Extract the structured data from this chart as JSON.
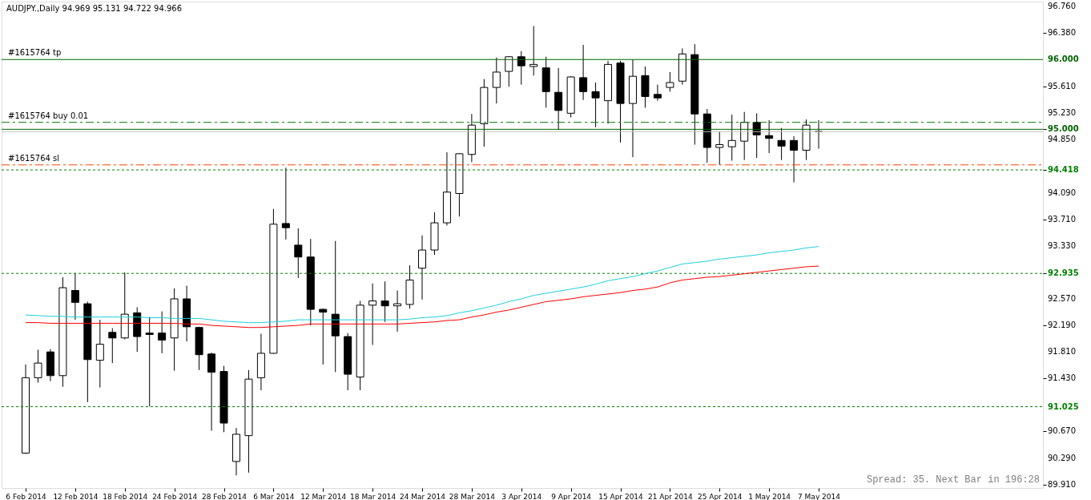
{
  "chart_data": {
    "type": "candlestick",
    "title": "AUDJPY.,Daily 94.969 95.131 94.722 94.966",
    "categories": [
      "6 Feb 2014",
      null,
      null,
      null,
      "12 Feb 2014",
      null,
      null,
      null,
      "18 Feb 2014",
      null,
      null,
      null,
      "24 Feb 2014",
      null,
      null,
      null,
      "28 Feb 2014",
      null,
      null,
      null,
      "6 Mar 2014",
      null,
      null,
      null,
      "12 Mar 2014",
      null,
      null,
      null,
      "18 Mar 2014",
      null,
      null,
      null,
      "24 Mar 2014",
      null,
      null,
      null,
      "28 Mar 2014",
      null,
      null,
      null,
      "3 Apr 2014",
      null,
      null,
      null,
      "9 Apr 2014",
      null,
      null,
      null,
      "15 Apr 2014",
      null,
      null,
      null,
      "21 Apr 2014",
      null,
      null,
      null,
      "25 Apr 2014",
      null,
      null,
      null,
      "1 May 2014",
      null,
      null,
      null,
      "7 May 2014"
    ],
    "ohlc": [
      [
        90.36,
        91.63,
        90.35,
        91.44
      ],
      [
        91.44,
        91.84,
        91.37,
        91.65
      ],
      [
        91.81,
        91.85,
        91.39,
        91.47
      ],
      [
        91.47,
        92.88,
        91.31,
        92.73
      ],
      [
        92.69,
        92.94,
        92.27,
        92.52
      ],
      [
        92.5,
        92.53,
        91.09,
        91.7
      ],
      [
        91.69,
        92.27,
        91.3,
        91.92
      ],
      [
        92.09,
        92.15,
        91.65,
        92.01
      ],
      [
        92.01,
        92.95,
        91.99,
        92.35
      ],
      [
        92.37,
        92.45,
        91.81,
        92.03
      ],
      [
        92.08,
        92.31,
        91.03,
        92.06
      ],
      [
        92.08,
        92.39,
        91.79,
        91.98
      ],
      [
        92.01,
        92.72,
        91.54,
        92.57
      ],
      [
        92.57,
        92.76,
        91.96,
        92.17
      ],
      [
        92.16,
        92.17,
        91.55,
        91.77
      ],
      [
        91.78,
        91.8,
        90.68,
        91.52
      ],
      [
        91.53,
        91.61,
        90.66,
        90.79
      ],
      [
        90.24,
        90.72,
        90.04,
        90.63
      ],
      [
        90.61,
        91.55,
        90.08,
        91.42
      ],
      [
        91.44,
        92.07,
        91.26,
        91.79
      ],
      [
        91.79,
        93.86,
        91.78,
        93.64
      ],
      [
        93.65,
        94.45,
        93.42,
        93.59
      ],
      [
        93.34,
        93.58,
        92.87,
        93.17
      ],
      [
        93.17,
        93.43,
        92.19,
        92.42
      ],
      [
        92.42,
        92.43,
        91.63,
        92.38
      ],
      [
        92.35,
        93.4,
        91.52,
        92.04
      ],
      [
        92.03,
        92.08,
        91.26,
        91.49
      ],
      [
        91.45,
        92.54,
        91.26,
        92.48
      ],
      [
        92.48,
        92.79,
        91.91,
        92.54
      ],
      [
        92.54,
        92.82,
        92.24,
        92.47
      ],
      [
        92.47,
        92.69,
        92.1,
        92.5
      ],
      [
        92.49,
        93.05,
        92.43,
        92.84
      ],
      [
        93.01,
        93.48,
        92.56,
        93.27
      ],
      [
        93.27,
        93.81,
        93.2,
        93.66
      ],
      [
        93.66,
        94.67,
        93.62,
        94.1
      ],
      [
        94.08,
        94.66,
        93.75,
        94.65
      ],
      [
        94.64,
        95.22,
        94.53,
        95.06
      ],
      [
        95.08,
        95.72,
        94.75,
        95.6
      ],
      [
        95.6,
        96.03,
        95.37,
        95.82
      ],
      [
        95.83,
        96.05,
        95.61,
        96.04
      ],
      [
        96.04,
        96.12,
        95.64,
        95.91
      ],
      [
        95.9,
        96.48,
        95.77,
        95.93
      ],
      [
        95.88,
        96.04,
        95.31,
        95.54
      ],
      [
        95.53,
        95.88,
        94.99,
        95.27
      ],
      [
        95.23,
        95.76,
        95.17,
        95.75
      ],
      [
        95.74,
        96.21,
        95.42,
        95.54
      ],
      [
        95.54,
        95.67,
        95.03,
        95.45
      ],
      [
        95.41,
        95.98,
        95.08,
        95.93
      ],
      [
        95.95,
        95.98,
        94.81,
        95.37
      ],
      [
        95.37,
        96.0,
        94.6,
        95.76
      ],
      [
        95.77,
        95.9,
        95.31,
        95.47
      ],
      [
        95.5,
        95.64,
        95.41,
        95.45
      ],
      [
        95.6,
        95.82,
        95.54,
        95.67
      ],
      [
        95.69,
        96.16,
        95.64,
        96.08
      ],
      [
        96.07,
        96.22,
        94.78,
        95.22
      ],
      [
        95.22,
        95.29,
        94.52,
        94.74
      ],
      [
        94.74,
        94.97,
        94.49,
        94.78
      ],
      [
        94.75,
        95.21,
        94.55,
        94.84
      ],
      [
        94.83,
        95.25,
        94.56,
        95.1
      ],
      [
        95.1,
        95.23,
        94.59,
        94.92
      ],
      [
        94.91,
        95.13,
        94.66,
        94.87
      ],
      [
        94.84,
        95.02,
        94.56,
        94.76
      ],
      [
        94.84,
        94.9,
        94.24,
        94.7
      ],
      [
        94.7,
        95.14,
        94.56,
        95.06
      ],
      [
        94.969,
        95.131,
        94.722,
        94.966
      ]
    ],
    "series": [
      {
        "type": "line",
        "color": "#20d0dc",
        "values": [
          92.34,
          92.33,
          92.32,
          92.32,
          92.31,
          92.31,
          92.31,
          92.31,
          92.31,
          92.31,
          92.3,
          92.3,
          92.29,
          92.29,
          92.29,
          92.27,
          92.25,
          92.24,
          92.23,
          92.23,
          92.24,
          92.25,
          92.27,
          92.27,
          92.27,
          92.27,
          92.27,
          92.27,
          92.27,
          92.27,
          92.27,
          92.28,
          92.3,
          92.31,
          92.33,
          92.37,
          92.4,
          92.44,
          92.48,
          92.53,
          92.57,
          92.62,
          92.65,
          92.68,
          92.71,
          92.74,
          92.78,
          92.83,
          92.86,
          92.89,
          92.93,
          92.97,
          93.02,
          93.07,
          93.09,
          93.11,
          93.14,
          93.16,
          93.18,
          93.2,
          93.23,
          93.25,
          93.27,
          93.3,
          93.32
        ]
      },
      {
        "type": "line",
        "color": "#ff0000",
        "values": [
          92.23,
          92.23,
          92.22,
          92.22,
          92.22,
          92.22,
          92.22,
          92.22,
          92.22,
          92.22,
          92.22,
          92.22,
          92.22,
          92.21,
          92.21,
          92.19,
          92.18,
          92.17,
          92.16,
          92.16,
          92.17,
          92.18,
          92.19,
          92.21,
          92.21,
          92.21,
          92.21,
          92.21,
          92.21,
          92.21,
          92.21,
          92.22,
          92.23,
          92.24,
          92.26,
          92.27,
          92.31,
          92.34,
          92.38,
          92.41,
          92.45,
          92.49,
          92.53,
          92.55,
          92.57,
          92.6,
          92.62,
          92.64,
          92.66,
          92.69,
          92.71,
          92.74,
          92.8,
          92.84,
          92.86,
          92.88,
          92.89,
          92.91,
          92.93,
          92.95,
          92.97,
          92.99,
          93.01,
          93.03,
          93.04
        ]
      }
    ],
    "ylim": [
      89.86,
      96.83
    ],
    "yticks": [
      {
        "value": 89.91,
        "label": "89.910"
      },
      {
        "value": 90.29,
        "label": "90.290"
      },
      {
        "value": 90.67,
        "label": "90.670"
      },
      {
        "value": 91.025,
        "label": "91.025"
      },
      {
        "value": 91.43,
        "label": "91.430"
      },
      {
        "value": 91.81,
        "label": "91.810"
      },
      {
        "value": 92.19,
        "label": "92.190"
      },
      {
        "value": 92.57,
        "label": "92.570"
      },
      {
        "value": 92.935,
        "label": "92.935"
      },
      {
        "value": 93.33,
        "label": "93.330"
      },
      {
        "value": 93.71,
        "label": "93.710"
      },
      {
        "value": 94.09,
        "label": "94.090"
      },
      {
        "value": 94.418,
        "label": "94.418"
      },
      {
        "value": 94.85,
        "label": "94.850"
      },
      {
        "value": 95.0,
        "label": "95.000"
      },
      {
        "value": 95.23,
        "label": "95.230"
      },
      {
        "value": 95.61,
        "label": "95.610"
      },
      {
        "value": 96.0,
        "label": "96.000"
      },
      {
        "value": 96.38,
        "label": "96.380"
      },
      {
        "value": 96.76,
        "label": "96.760"
      }
    ],
    "ref_lines": [
      {
        "axis": "y",
        "value": 96.0,
        "label": "#1615764 tp",
        "color": "#006400",
        "line_style": "solid"
      },
      {
        "axis": "y",
        "value": 95.1,
        "label": "#1615764 buy 0.01",
        "color": "#008000",
        "line_style": "dashed"
      },
      {
        "axis": "y",
        "value": 95.0,
        "label": null,
        "color": "#006400",
        "line_style": "solid"
      },
      {
        "axis": "y",
        "value": 94.966,
        "label": null,
        "color": "#c0c0c0",
        "line_style": "solid"
      },
      {
        "axis": "y",
        "value": 94.49,
        "label": "#1615764 sl",
        "color": "#ff4500",
        "line_style": "dashed"
      },
      {
        "axis": "y",
        "value": 94.418,
        "label": null,
        "color": "#008000",
        "line_style": "dotted"
      },
      {
        "axis": "y",
        "value": 92.935,
        "label": null,
        "color": "#008000",
        "line_style": "dotted"
      },
      {
        "axis": "y",
        "value": 91.025,
        "label": null,
        "color": "#008000",
        "line_style": "dotted"
      }
    ],
    "annotations": [
      "Spread: 35. Next Bar in 196:28"
    ],
    "grid": false
  }
}
